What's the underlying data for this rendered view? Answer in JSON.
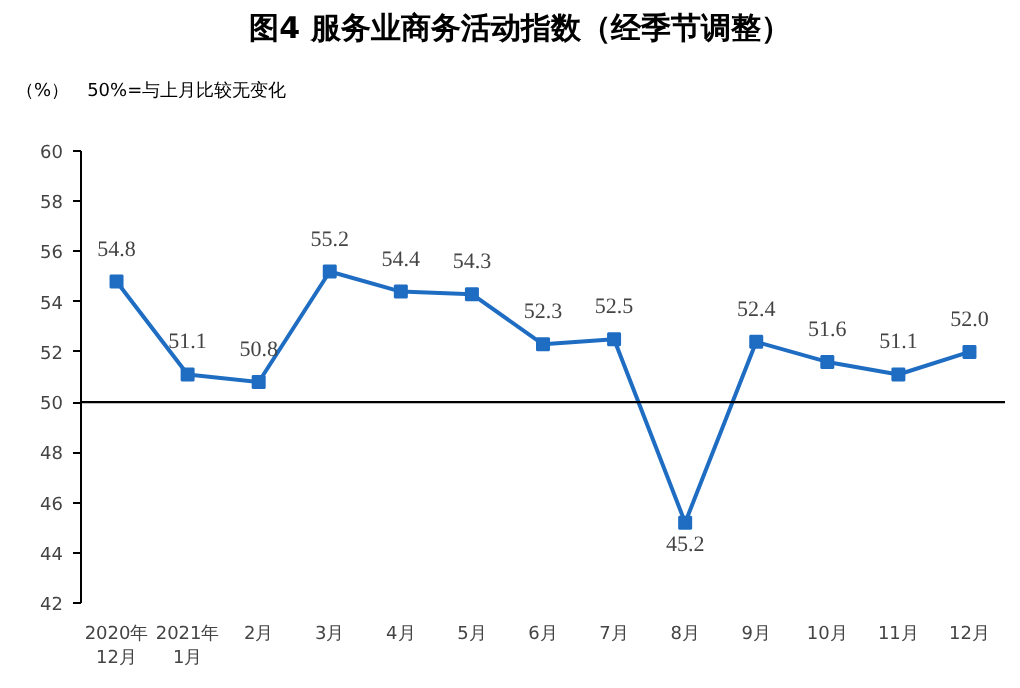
{
  "chart_data": {
    "type": "line",
    "title": "图4  服务业商务活动指数（经季节调整）",
    "annotations": [
      "（%）",
      "50%=与上月比较无变化"
    ],
    "categories": [
      "2020年\n12月",
      "2021年\n1月",
      "2月",
      "3月",
      "4月",
      "5月",
      "6月",
      "7月",
      "8月",
      "9月",
      "10月",
      "11月",
      "12月"
    ],
    "series": [
      {
        "color": "#1f6dc2",
        "values": [
          54.8,
          51.1,
          50.8,
          55.2,
          54.4,
          54.3,
          52.3,
          52.5,
          45.2,
          52.4,
          51.6,
          51.1,
          52.0
        ]
      }
    ],
    "ylim": [
      42,
      60
    ],
    "yticks": [
      42,
      44,
      46,
      48,
      50,
      52,
      54,
      56,
      58,
      60
    ],
    "ref_lines": [
      {
        "axis": "y",
        "value": 50,
        "color": "#000000"
      }
    ],
    "value_labels": [
      "54.8",
      "51.1",
      "50.8",
      "55.2",
      "54.4",
      "54.3",
      "52.3",
      "52.5",
      "45.2",
      "52.4",
      "51.6",
      "51.1",
      "52.0"
    ],
    "marker": "square",
    "line_style": "solid",
    "grid": false
  }
}
